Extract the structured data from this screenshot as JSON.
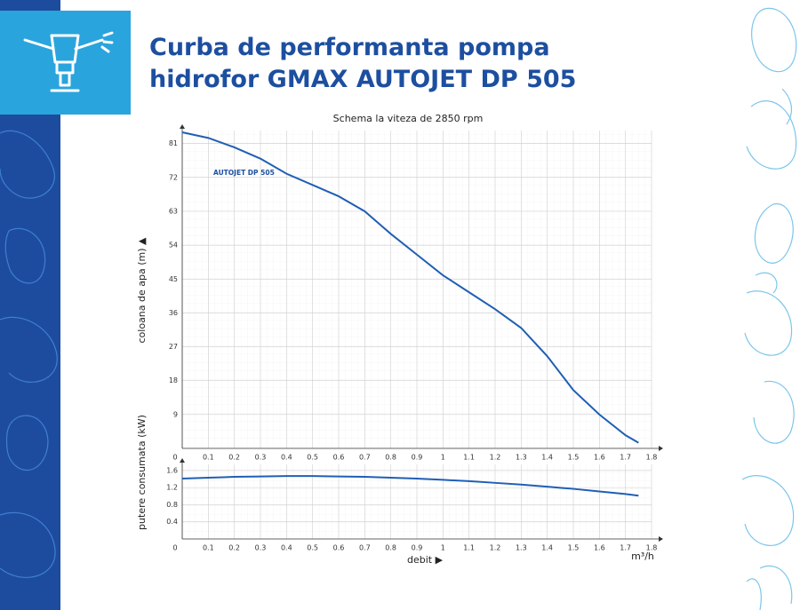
{
  "header": {
    "title": [
      "Curba de performanta pompa",
      "hidrofor GMAX AUTOJET DP 505"
    ]
  },
  "chart_data": [
    {
      "type": "line",
      "title": "Schema la viteza de 2850 rpm",
      "y_label": "coloana de apa (m) ▲",
      "x": [
        0,
        0.1,
        0.2,
        0.3,
        0.4,
        0.5,
        0.6,
        0.7,
        0.8,
        0.9,
        1.0,
        1.1,
        1.2,
        1.3,
        1.4,
        1.5,
        1.6,
        1.7,
        1.75
      ],
      "series": [
        {
          "name": "AUTOJET DP 505",
          "color": "#1f5fb5",
          "values": [
            84,
            82.5,
            80,
            77,
            73,
            70,
            67,
            63,
            57,
            51.5,
            46,
            41.5,
            37,
            32,
            24.5,
            15.5,
            9,
            3.5,
            1.5
          ]
        }
      ],
      "xlim": [
        0,
        1.8
      ],
      "xticks": [
        0,
        0.1,
        0.2,
        0.3,
        0.4,
        0.5,
        0.6,
        0.7,
        0.8,
        0.9,
        1,
        1.1,
        1.2,
        1.3,
        1.4,
        1.5,
        1.6,
        1.7,
        1.8
      ],
      "ylim": [
        0,
        84
      ],
      "yticks": [
        9,
        18,
        27,
        36,
        45,
        54,
        63,
        72,
        81
      ],
      "grid": true
    },
    {
      "type": "line",
      "y_label": "putere consumata (kW)",
      "x_label": "debit ▶",
      "x_unit": "m³/h",
      "x": [
        0,
        0.1,
        0.2,
        0.3,
        0.4,
        0.5,
        0.6,
        0.7,
        0.8,
        0.9,
        1.0,
        1.1,
        1.2,
        1.3,
        1.4,
        1.5,
        1.6,
        1.7,
        1.75
      ],
      "series": [
        {
          "name": "AUTOJET DP 505",
          "color": "#1f5fb5",
          "values": [
            1.41,
            1.43,
            1.45,
            1.46,
            1.47,
            1.47,
            1.46,
            1.45,
            1.43,
            1.41,
            1.38,
            1.35,
            1.31,
            1.27,
            1.22,
            1.17,
            1.11,
            1.05,
            1.01
          ]
        }
      ],
      "xlim": [
        0,
        1.8
      ],
      "xticks": [
        0,
        0.1,
        0.2,
        0.3,
        0.4,
        0.5,
        0.6,
        0.7,
        0.8,
        0.9,
        1,
        1.1,
        1.2,
        1.3,
        1.4,
        1.5,
        1.6,
        1.7,
        1.8
      ],
      "ylim": [
        0,
        1.7
      ],
      "yticks": [
        0.4,
        0.8,
        1.2,
        1.6
      ],
      "grid": true
    }
  ]
}
